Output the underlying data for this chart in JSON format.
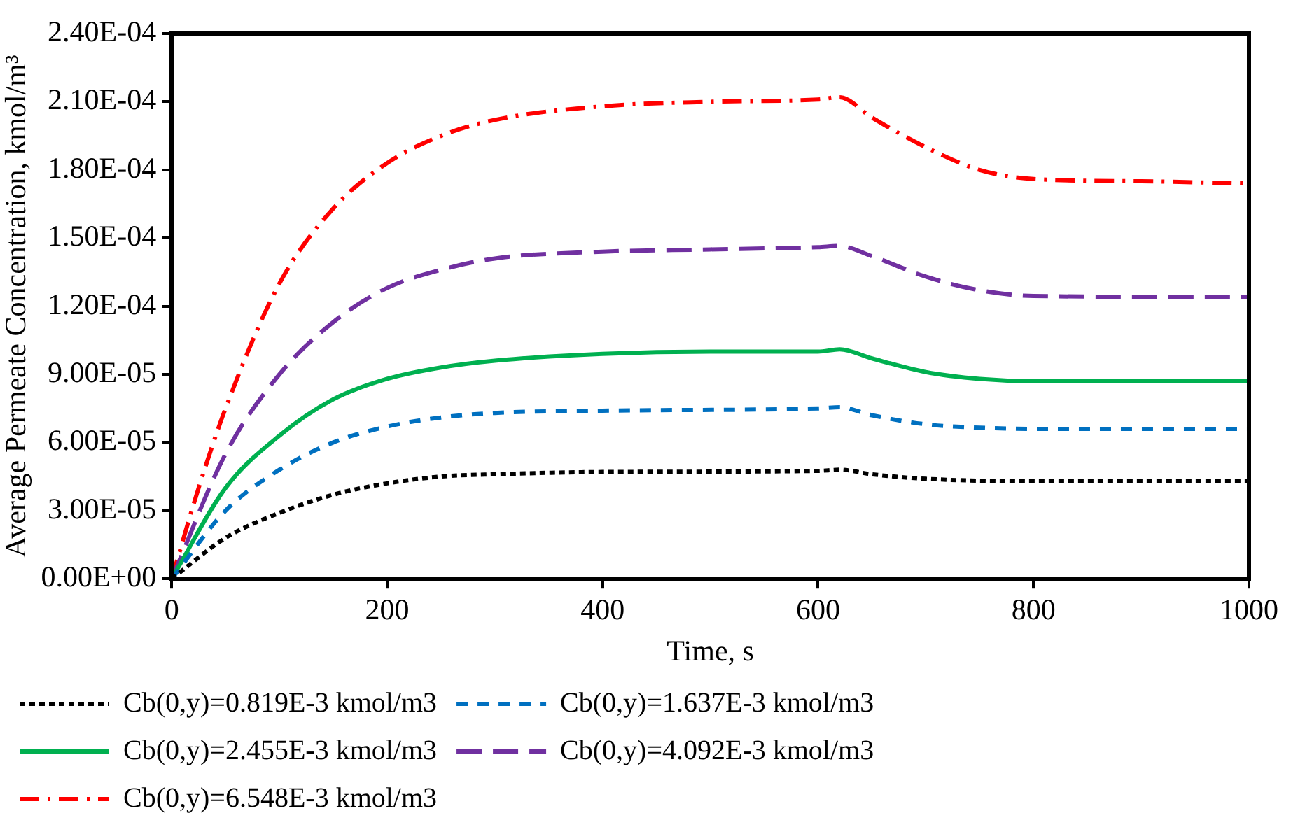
{
  "chart_data": {
    "type": "line",
    "xlabel": "Time, s",
    "ylabel": "Average Permeate Concentration, kmol/m³",
    "xlim": [
      0,
      1000
    ],
    "xticks": [
      0,
      200,
      400,
      600,
      800,
      1000
    ],
    "ylim": [
      0,
      0.00024
    ],
    "yticks": [
      {
        "value": 0,
        "label": "0.00E+00"
      },
      {
        "value": 3e-05,
        "label": "3.00E-05"
      },
      {
        "value": 6e-05,
        "label": "6.00E-05"
      },
      {
        "value": 9e-05,
        "label": "9.00E-05"
      },
      {
        "value": 0.00012,
        "label": "1.20E-04"
      },
      {
        "value": 0.00015,
        "label": "1.50E-04"
      },
      {
        "value": 0.00018,
        "label": "1.80E-04"
      },
      {
        "value": 0.00021,
        "label": "2.10E-04"
      },
      {
        "value": 0.00024,
        "label": "2.40E-04"
      }
    ],
    "grid": false,
    "legend": "bottom",
    "marker": "none",
    "series": [
      {
        "name": "Cb(0,y)=0.819E-3 kmol/m3",
        "color": "#000000",
        "line_style": "dotted",
        "x": [
          0,
          50,
          100,
          150,
          200,
          250,
          300,
          400,
          600,
          620,
          650,
          700,
          800,
          1000
        ],
        "values": [
          0,
          1.8e-05,
          2.9e-05,
          3.7e-05,
          4.2e-05,
          4.5e-05,
          4.6e-05,
          4.7e-05,
          4.75e-05,
          4.8e-05,
          4.6e-05,
          4.4e-05,
          4.3e-05,
          4.3e-05
        ]
      },
      {
        "name": "Cb(0,y)=1.637E-3 kmol/m3",
        "color": "#0070c0",
        "line_style": "dashed",
        "x": [
          0,
          50,
          100,
          150,
          200,
          250,
          300,
          400,
          600,
          620,
          650,
          700,
          750,
          800,
          1000
        ],
        "values": [
          0,
          3e-05,
          4.8e-05,
          6e-05,
          6.7e-05,
          7.1e-05,
          7.3e-05,
          7.4e-05,
          7.5e-05,
          7.55e-05,
          7.2e-05,
          6.8e-05,
          6.65e-05,
          6.6e-05,
          6.6e-05
        ]
      },
      {
        "name": "Cb(0,y)=2.455E-3 kmol/m3",
        "color": "#00b050",
        "line_style": "solid",
        "x": [
          0,
          50,
          100,
          150,
          200,
          250,
          300,
          400,
          500,
          600,
          620,
          650,
          700,
          750,
          800,
          1000
        ],
        "values": [
          0,
          4e-05,
          6.3e-05,
          7.9e-05,
          8.8e-05,
          9.3e-05,
          9.6e-05,
          9.9e-05,
          0.0001,
          0.0001,
          0.000101,
          9.7e-05,
          9.1e-05,
          8.8e-05,
          8.7e-05,
          8.7e-05
        ]
      },
      {
        "name": "Cb(0,y)=4.092E-3 kmol/m3",
        "color": "#7030a0",
        "line_style": "longdash",
        "x": [
          0,
          50,
          100,
          150,
          200,
          250,
          300,
          400,
          500,
          600,
          620,
          650,
          700,
          750,
          800,
          1000
        ],
        "values": [
          0,
          5.5e-05,
          9e-05,
          0.000113,
          0.000128,
          0.000136,
          0.000141,
          0.000144,
          0.000145,
          0.000146,
          0.0001465,
          0.000142,
          0.000133,
          0.000127,
          0.0001245,
          0.000124
        ]
      },
      {
        "name": "Cb(0,y)=6.548E-3 kmol/m3",
        "color": "#ff0000",
        "line_style": "dashdot",
        "x": [
          0,
          25,
          50,
          100,
          150,
          200,
          250,
          300,
          400,
          500,
          600,
          620,
          650,
          700,
          750,
          800,
          900,
          1000
        ],
        "values": [
          0,
          4e-05,
          7.5e-05,
          0.00013,
          0.000163,
          0.000183,
          0.000195,
          0.000202,
          0.000208,
          0.00021,
          0.000211,
          0.000212,
          0.000203,
          0.00019,
          0.00018,
          0.000176,
          0.000175,
          0.000174
        ]
      }
    ]
  }
}
